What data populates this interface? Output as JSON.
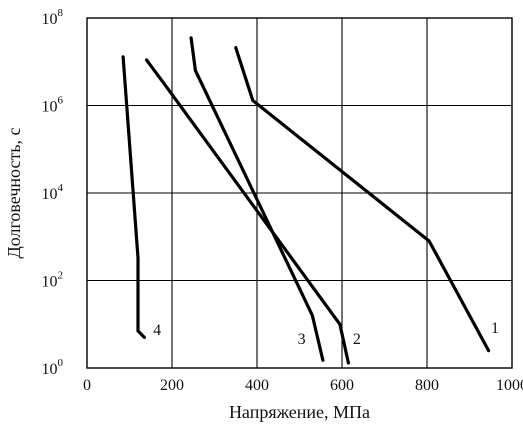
{
  "chart_data": {
    "type": "line",
    "xlabel": "Напряжение, МПа",
    "ylabel": "Долговечность, с",
    "xlim": [
      0,
      1000
    ],
    "ylim_log10": [
      0,
      8
    ],
    "y_scale": "log",
    "grid": true,
    "x_ticks": [
      {
        "value": 0,
        "label": "0"
      },
      {
        "value": 200,
        "label": "200"
      },
      {
        "value": 400,
        "label": "400"
      },
      {
        "value": 600,
        "label": "600"
      },
      {
        "value": 800,
        "label": "800"
      },
      {
        "value": 1000,
        "label": "1000"
      }
    ],
    "y_ticks": [
      {
        "exp": 0,
        "base": "10",
        "sup": "0"
      },
      {
        "exp": 2,
        "base": "10",
        "sup": "2"
      },
      {
        "exp": 4,
        "base": "10",
        "sup": "4"
      },
      {
        "exp": 6,
        "base": "10",
        "sup": "6"
      },
      {
        "exp": 8,
        "base": "10",
        "sup": "8"
      }
    ],
    "series": [
      {
        "label": "1",
        "points": [
          [
            350,
            21000000.0
          ],
          [
            390,
            1300000.0
          ],
          [
            805,
            800.0
          ],
          [
            945,
            2.5
          ]
        ]
      },
      {
        "label": "2",
        "points": [
          [
            140,
            11000000.0
          ],
          [
            180,
            3300000.0
          ],
          [
            595,
            10
          ],
          [
            615,
            1.3
          ]
        ]
      },
      {
        "label": "3",
        "points": [
          [
            245,
            35000000.0
          ],
          [
            255,
            6300000.0
          ],
          [
            530,
            16
          ],
          [
            555,
            1.5
          ]
        ]
      },
      {
        "label": "4",
        "points": [
          [
            85,
            13000000.0
          ],
          [
            120,
            330.0
          ],
          [
            120,
            7
          ],
          [
            135,
            5
          ]
        ]
      }
    ],
    "curve_label_positions": [
      {
        "label": "1",
        "x": 960,
        "log10y": 0.8
      },
      {
        "label": "2",
        "x": 635,
        "log10y": 0.55
      },
      {
        "label": "3",
        "x": 505,
        "log10y": 0.55
      },
      {
        "label": "4",
        "x": 165,
        "log10y": 0.75
      }
    ]
  }
}
